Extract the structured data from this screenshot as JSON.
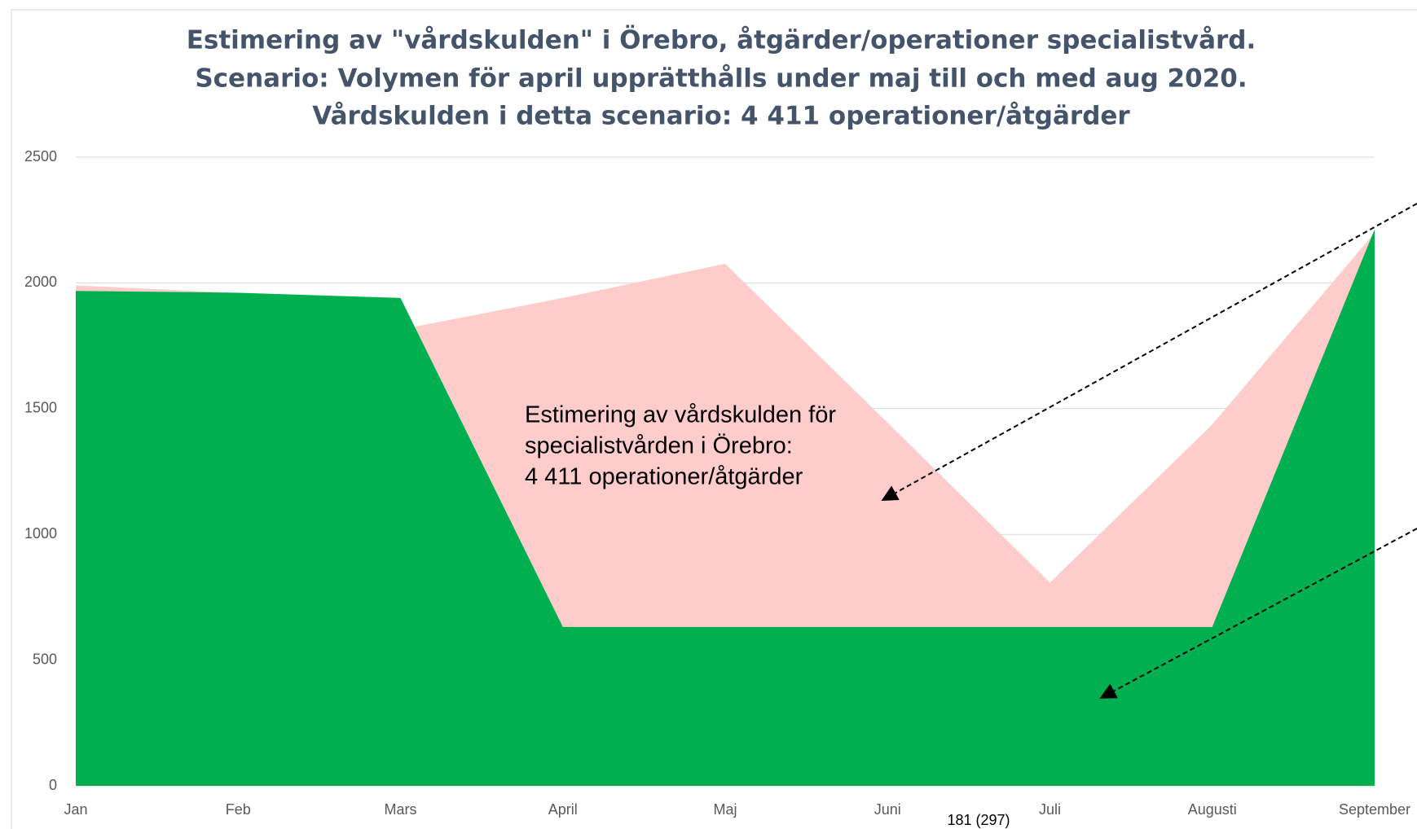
{
  "chart_data": {
    "type": "area",
    "title": [
      "Estimering av \"vårdskulden\" i Örebro, åtgärder/operationer specialistvård.",
      "Scenario: Volymen för april upprätthålls under maj till och med aug 2020.",
      "Vårdskulden i detta scenario: 4 411 operationer/åtgärder"
    ],
    "categories": [
      "Jan",
      "Feb",
      "Mars",
      "April",
      "Maj",
      "Juni",
      "Juli",
      "Augusti",
      "September"
    ],
    "series": [
      {
        "color": "#ffcccc",
        "values": [
          1990,
          1960,
          1815,
          1940,
          2076,
          1444,
          808,
          1437,
          2200
        ]
      },
      {
        "color": "#00b050",
        "values": [
          1968,
          1961,
          1940,
          632,
          632,
          632,
          632,
          632,
          2213
        ]
      }
    ],
    "ylim": [
      0,
      2500
    ],
    "yticks": [
      0,
      500,
      1000,
      1500,
      2000,
      2500
    ],
    "grid": true,
    "annotation": [
      "Estimering av vårdskulden för",
      "specialistvården i Örebro:",
      "4 411 operationer/åtgärder"
    ],
    "footer": "181 (297)"
  }
}
